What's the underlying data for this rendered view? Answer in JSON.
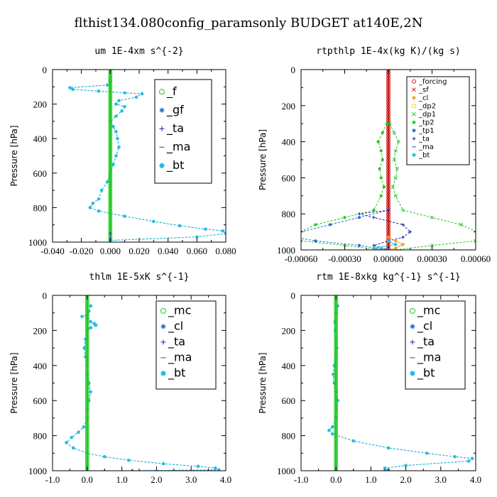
{
  "title": "flthist134.080config_paramsonly  BUDGET at140E,2N",
  "colors": {
    "blue": "#1f6fd0",
    "green": "#22c922",
    "navy": "#1f1fa0",
    "red": "#d02020",
    "orange": "#f0a020",
    "yellow": "#e8d020",
    "olive": "#6aa030",
    "cyan": "#20c0e0"
  },
  "chart_data": [
    {
      "type": "line",
      "title": "um  1E-4xm s^{-2}",
      "ylabel": "Pressure [hPa]",
      "xlim": [
        -0.04,
        0.08
      ],
      "ylim": [
        1000,
        0
      ],
      "xticks": [
        "-0.040",
        "-0.020",
        "0.000",
        "0.020",
        "0.040",
        "0.060",
        "0.080"
      ],
      "yticks": [
        "0",
        "200",
        "400",
        "600",
        "800",
        "1000"
      ],
      "legend": [
        "_f",
        "_gf",
        "_ta",
        "_ma",
        "_bt"
      ],
      "series": [
        {
          "name": "_gf",
          "x": [
            0.0,
            -0.002,
            -0.028,
            -0.026,
            -0.008,
            0.01,
            0.022,
            0.018,
            0.006,
            0.004,
            0.01,
            0.008,
            0.004,
            0.0,
            0.002,
            0.004,
            0.005,
            0.006,
            0.004,
            0.002,
            0.0,
            -0.002,
            -0.006,
            -0.008,
            -0.012,
            -0.014,
            -0.008,
            0.01,
            0.03,
            0.048,
            0.066,
            0.078,
            0.08,
            0.06,
            0.0
          ],
          "y": [
            70,
            90,
            105,
            115,
            125,
            135,
            140,
            160,
            180,
            200,
            215,
            240,
            270,
            300,
            330,
            360,
            400,
            450,
            500,
            550,
            600,
            650,
            700,
            750,
            775,
            800,
            820,
            850,
            880,
            905,
            925,
            935,
            950,
            970,
            990
          ]
        },
        {
          "name": "_bt",
          "x": [
            0.0,
            -0.002,
            -0.028,
            -0.026,
            -0.008,
            0.01,
            0.022,
            0.018,
            0.006,
            0.004,
            0.01,
            0.008,
            0.004,
            0.0,
            0.002,
            0.004,
            0.005,
            0.006,
            0.004,
            0.002,
            0.0,
            -0.002,
            -0.006,
            -0.008,
            -0.012,
            -0.014,
            -0.008,
            0.01,
            0.03,
            0.048,
            0.066,
            0.078,
            0.08,
            0.06,
            0.0
          ],
          "y": [
            70,
            90,
            105,
            115,
            125,
            135,
            140,
            160,
            180,
            200,
            215,
            240,
            270,
            300,
            330,
            360,
            400,
            450,
            500,
            550,
            600,
            650,
            700,
            750,
            775,
            800,
            820,
            850,
            880,
            905,
            925,
            935,
            950,
            970,
            990
          ]
        },
        {
          "name": "_f",
          "x": [
            0,
            0,
            0,
            0,
            0
          ],
          "y": [
            0,
            250,
            500,
            750,
            1000
          ]
        },
        {
          "name": "_ta",
          "x": [
            0,
            0
          ],
          "y": [
            950,
            1000
          ]
        },
        {
          "name": "_ma",
          "x": [
            0,
            0
          ],
          "y": [
            950,
            1000
          ]
        }
      ]
    },
    {
      "type": "line",
      "title": "rtpthlp  1E-4x(kg K)/(kg s)",
      "ylabel": "Pressure [hPa]",
      "xlim": [
        -0.0006,
        0.0006
      ],
      "ylim": [
        1000,
        0
      ],
      "xticks": [
        "-0.00060",
        "-0.00030",
        "0.00000",
        "0.00030",
        "0.00060"
      ],
      "yticks": [
        "0",
        "200",
        "400",
        "600",
        "800",
        "1000"
      ],
      "legend": [
        "_forcing",
        "_sf",
        "_cl",
        "_dp2",
        "_dp1",
        "_tp2",
        "_tp1",
        "_ta",
        "_ma",
        "_bt"
      ],
      "series": [
        {
          "name": "_forcing",
          "x": [
            0,
            0,
            0
          ],
          "y": [
            0,
            500,
            1000
          ]
        },
        {
          "name": "_dp1",
          "x": [
            1e-05,
            4e-05,
            7e-05,
            5e-05,
            4e-05,
            6e-05,
            5e-05,
            3e-05,
            5e-05,
            0.0001,
            0.0003,
            0.0005,
            0.00066,
            0.0006,
            0.0003,
            5e-05
          ],
          "y": [
            300,
            350,
            400,
            450,
            500,
            550,
            600,
            650,
            700,
            780,
            820,
            860,
            920,
            950,
            975,
            1000
          ]
        },
        {
          "name": "_tp2",
          "x": [
            -1e-05,
            -4e-05,
            -7e-05,
            -5e-05,
            -4e-05,
            -6e-05,
            -5e-05,
            -3e-05,
            -5e-05,
            -0.0001,
            -0.0003,
            -0.0005,
            -0.00066,
            -0.0006,
            -0.0003,
            -5e-05
          ],
          "y": [
            300,
            350,
            400,
            450,
            500,
            550,
            600,
            650,
            700,
            780,
            820,
            860,
            920,
            950,
            975,
            1000
          ]
        },
        {
          "name": "_tp1",
          "x": [
            0,
            -0.0002,
            -0.0004,
            -0.0007,
            -0.0005,
            -0.0002,
            0
          ],
          "y": [
            780,
            820,
            860,
            920,
            950,
            975,
            1000
          ]
        },
        {
          "name": "_ta",
          "x": [
            0,
            -0.0002,
            -0.0001,
            0.0001,
            0.00015,
            0.0001,
            0,
            -0.0001,
            0
          ],
          "y": [
            780,
            800,
            820,
            860,
            900,
            930,
            950,
            975,
            1000
          ]
        },
        {
          "name": "_cl",
          "x": [
            0,
            5e-05,
            0.0001,
            5e-05,
            0
          ],
          "y": [
            930,
            950,
            970,
            990,
            1000
          ]
        },
        {
          "name": "_bt",
          "x": [
            0,
            5e-05,
            -0.0001,
            0
          ],
          "y": [
            950,
            970,
            990,
            1000
          ]
        }
      ]
    },
    {
      "type": "line",
      "title": "thlm  1E-5xK s^{-1}",
      "ylabel": "Pressure [hPa]",
      "xlim": [
        -1.0,
        4.0
      ],
      "ylim": [
        1000,
        0
      ],
      "xticks": [
        "-1.0",
        "0.0",
        "1.0",
        "2.0",
        "3.0",
        "4.0"
      ],
      "yticks": [
        "0",
        "200",
        "400",
        "600",
        "800",
        "1000"
      ],
      "legend": [
        "_mc",
        "_cl",
        "_ta",
        "_ma",
        "_bt"
      ],
      "series": [
        {
          "name": "_cl",
          "x": [
            0.1,
            0.05,
            0.0,
            -0.15,
            0.0,
            0.1,
            0.2,
            0.25,
            0.1,
            0.0,
            -0.05,
            -0.08,
            -0.05,
            0.0,
            0.0,
            0.05,
            0.1,
            0.05,
            0.0,
            0.0,
            -0.1,
            -0.25,
            -0.45,
            -0.6,
            -0.4,
            0.0,
            0.5,
            1.2,
            2.2,
            3.2,
            3.7,
            3.8,
            1.3
          ],
          "y": [
            60,
            90,
            110,
            120,
            130,
            150,
            160,
            170,
            185,
            200,
            250,
            300,
            350,
            400,
            450,
            500,
            550,
            600,
            650,
            700,
            750,
            780,
            810,
            840,
            870,
            900,
            920,
            940,
            960,
            975,
            985,
            995,
            1000
          ]
        },
        {
          "name": "_bt",
          "x": [
            0.1,
            0.05,
            0.0,
            -0.15,
            0.0,
            0.1,
            0.2,
            0.25,
            0.1,
            0.0,
            -0.05,
            -0.08,
            -0.05,
            0.0,
            0.0,
            0.05,
            0.1,
            0.05,
            0.0,
            0.0,
            -0.1,
            -0.25,
            -0.45,
            -0.6,
            -0.4,
            0.0,
            0.5,
            1.2,
            2.2,
            3.2,
            3.7,
            3.8,
            1.3
          ],
          "y": [
            60,
            90,
            110,
            120,
            130,
            150,
            160,
            170,
            185,
            200,
            250,
            300,
            350,
            400,
            450,
            500,
            550,
            600,
            650,
            700,
            750,
            780,
            810,
            840,
            870,
            900,
            920,
            940,
            960,
            975,
            985,
            995,
            1000
          ]
        },
        {
          "name": "_mc",
          "x": [
            0,
            0,
            0,
            0,
            0
          ],
          "y": [
            0,
            250,
            500,
            750,
            1000
          ]
        },
        {
          "name": "_ta",
          "x": [
            0.0,
            0.5,
            1.0,
            1.3
          ],
          "y": [
            1000,
            1000,
            1000,
            1000
          ]
        }
      ]
    },
    {
      "type": "line",
      "title": "rtm  1E-8xkg kg^{-1} s^{-1}",
      "ylabel": "Pressure [hPa]",
      "xlim": [
        -1.0,
        4.0
      ],
      "ylim": [
        1000,
        0
      ],
      "xticks": [
        "-1.0",
        "0.0",
        "1.0",
        "2.0",
        "3.0",
        "4.0"
      ],
      "yticks": [
        "0",
        "200",
        "400",
        "600",
        "800",
        "1000"
      ],
      "legend": [
        "_mc",
        "_cl",
        "_ta",
        "_ma",
        "_bt"
      ],
      "series": [
        {
          "name": "_cl",
          "x": [
            0.05,
            0.0,
            -0.03,
            -0.02,
            0.0,
            0.02,
            0.0,
            -0.05,
            -0.08,
            -0.05,
            0.0,
            0.05,
            0.0,
            -0.1,
            -0.2,
            -0.1,
            0.5,
            1.5,
            2.6,
            3.4,
            3.9,
            3.8,
            2.0,
            1.4,
            1.5,
            1.4
          ],
          "y": [
            60,
            100,
            150,
            200,
            250,
            300,
            350,
            400,
            450,
            500,
            550,
            600,
            700,
            750,
            770,
            790,
            830,
            870,
            900,
            920,
            930,
            945,
            970,
            985,
            995,
            1000
          ]
        },
        {
          "name": "_bt",
          "x": [
            0.05,
            0.0,
            -0.03,
            -0.02,
            0.0,
            0.02,
            0.0,
            -0.05,
            -0.08,
            -0.05,
            0.0,
            0.05,
            0.0,
            -0.1,
            -0.2,
            -0.1,
            0.5,
            1.5,
            2.6,
            3.4,
            3.9,
            3.8,
            2.0,
            1.4,
            1.5,
            1.4
          ],
          "y": [
            60,
            100,
            150,
            200,
            250,
            300,
            350,
            400,
            450,
            500,
            550,
            600,
            700,
            750,
            770,
            790,
            830,
            870,
            900,
            920,
            930,
            945,
            970,
            985,
            995,
            1000
          ]
        },
        {
          "name": "_mc",
          "x": [
            0,
            0,
            0,
            0,
            0
          ],
          "y": [
            0,
            250,
            500,
            750,
            1000
          ]
        },
        {
          "name": "_ta",
          "x": [
            0.0,
            0.5,
            1.0,
            1.4
          ],
          "y": [
            1000,
            1000,
            1000,
            1000
          ]
        }
      ]
    }
  ]
}
